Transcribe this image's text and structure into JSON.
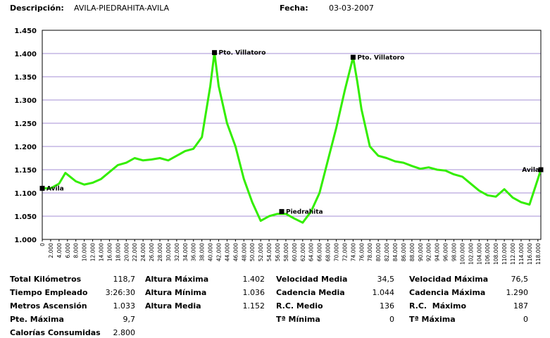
{
  "header": {
    "desc_label": "Descripción:",
    "desc": "AVILA-PIEDRAHITA-AVILA",
    "date_label": "Fecha:",
    "date": "03-03-2007"
  },
  "chart_data": {
    "type": "line",
    "color": "#33ee00",
    "grid": true,
    "xlim": [
      0,
      118700
    ],
    "ylim": [
      1000,
      1450
    ],
    "yticks": [
      {
        "value": 1000,
        "label": "1.000"
      },
      {
        "value": 1050,
        "label": "1.050"
      },
      {
        "value": 1100,
        "label": "1.100"
      },
      {
        "value": 1150,
        "label": "1.150"
      },
      {
        "value": 1200,
        "label": "1.200"
      },
      {
        "value": 1250,
        "label": "1.250"
      },
      {
        "value": 1300,
        "label": "1.300"
      },
      {
        "value": 1350,
        "label": "1.350"
      },
      {
        "value": 1400,
        "label": "1.400"
      },
      {
        "value": 1450,
        "label": "1.450"
      }
    ],
    "xticks": [
      0,
      {
        "value": 2000,
        "label": "2.000"
      },
      {
        "value": 4000,
        "label": "4.000"
      },
      {
        "value": 6000,
        "label": "6.000"
      },
      {
        "value": 8000,
        "label": "8.000"
      },
      {
        "value": 10000,
        "label": "10.000"
      },
      {
        "value": 12000,
        "label": "12.000"
      },
      {
        "value": 14000,
        "label": "14.000"
      },
      {
        "value": 16000,
        "label": "16.000"
      },
      {
        "value": 18000,
        "label": "18.000"
      },
      {
        "value": 20000,
        "label": "20.000"
      },
      {
        "value": 22000,
        "label": "22.000"
      },
      {
        "value": 24000,
        "label": "24.000"
      },
      {
        "value": 26000,
        "label": "26.000"
      },
      {
        "value": 28000,
        "label": "28.000"
      },
      {
        "value": 30000,
        "label": "30.000"
      },
      {
        "value": 32000,
        "label": "32.000"
      },
      {
        "value": 34000,
        "label": "34.000"
      },
      {
        "value": 36000,
        "label": "36.000"
      },
      {
        "value": 38000,
        "label": "38.000"
      },
      {
        "value": 40000,
        "label": "40.000"
      },
      {
        "value": 42000,
        "label": "42.000"
      },
      {
        "value": 44000,
        "label": "44.000"
      },
      {
        "value": 46000,
        "label": "46.000"
      },
      {
        "value": 48000,
        "label": "48.000"
      },
      {
        "value": 50000,
        "label": "50.000"
      },
      {
        "value": 52000,
        "label": "52.000"
      },
      {
        "value": 54000,
        "label": "54.000"
      },
      {
        "value": 56000,
        "label": "56.000"
      },
      {
        "value": 58000,
        "label": "58.000"
      },
      {
        "value": 60000,
        "label": "60.000"
      },
      {
        "value": 62000,
        "label": "62.000"
      },
      {
        "value": 64000,
        "label": "64.000"
      },
      {
        "value": 66000,
        "label": "66.000"
      },
      {
        "value": 68000,
        "label": "68.000"
      },
      {
        "value": 70000,
        "label": "70.000"
      },
      {
        "value": 72000,
        "label": "72.000"
      },
      {
        "value": 74000,
        "label": "74.000"
      },
      {
        "value": 76000,
        "label": "76.000"
      },
      {
        "value": 78000,
        "label": "78.000"
      },
      {
        "value": 80000,
        "label": "80.000"
      },
      {
        "value": 82000,
        "label": "82.000"
      },
      {
        "value": 84000,
        "label": "84.000"
      },
      {
        "value": 86000,
        "label": "86.000"
      },
      {
        "value": 88000,
        "label": "88.000"
      },
      {
        "value": 90000,
        "label": "90.000"
      },
      {
        "value": 92000,
        "label": "92.000"
      },
      {
        "value": 94000,
        "label": "94.000"
      },
      {
        "value": 96000,
        "label": "96.000"
      },
      {
        "value": 98000,
        "label": "98.000"
      },
      {
        "value": 100000,
        "label": "100.000"
      },
      {
        "value": 102000,
        "label": "102.000"
      },
      {
        "value": 104000,
        "label": "104.000"
      },
      {
        "value": 106000,
        "label": "106.000"
      },
      {
        "value": 108000,
        "label": "108.000"
      },
      {
        "value": 110000,
        "label": "110.000"
      },
      {
        "value": 112000,
        "label": "112.000"
      },
      {
        "value": 114000,
        "label": "114.000"
      },
      {
        "value": 116000,
        "label": "116.000"
      },
      {
        "value": 118000,
        "label": "118.000"
      }
    ],
    "x": [
      0,
      2000,
      4000,
      5500,
      8000,
      10000,
      12000,
      14000,
      16000,
      18000,
      20000,
      22000,
      24000,
      26000,
      28000,
      30000,
      32000,
      34000,
      36000,
      38000,
      40000,
      41000,
      42000,
      44000,
      46000,
      48000,
      50000,
      52000,
      54000,
      56000,
      58000,
      60000,
      62000,
      64000,
      66000,
      68000,
      70000,
      72000,
      74000,
      75000,
      76000,
      78000,
      80000,
      82000,
      84000,
      86000,
      88000,
      90000,
      92000,
      94000,
      96000,
      98000,
      100000,
      102000,
      104000,
      106000,
      108000,
      110000,
      112000,
      114000,
      116000,
      118000,
      118700
    ],
    "values": [
      1110,
      1110,
      1120,
      1143,
      1125,
      1118,
      1122,
      1130,
      1145,
      1160,
      1165,
      1175,
      1170,
      1172,
      1175,
      1170,
      1180,
      1190,
      1195,
      1220,
      1330,
      1402,
      1330,
      1250,
      1200,
      1130,
      1080,
      1040,
      1050,
      1055,
      1055,
      1045,
      1036,
      1060,
      1100,
      1170,
      1240,
      1320,
      1392,
      1340,
      1280,
      1200,
      1180,
      1175,
      1168,
      1165,
      1158,
      1152,
      1155,
      1150,
      1148,
      1140,
      1135,
      1120,
      1105,
      1095,
      1092,
      1108,
      1090,
      1080,
      1075,
      1130,
      1150
    ],
    "annotations": [
      {
        "x": 0,
        "y": 1110,
        "label": "Avila"
      },
      {
        "x": 41000,
        "y": 1402,
        "label": "Pto. Villatoro"
      },
      {
        "x": 57000,
        "y": 1060,
        "label": "Piedrahita"
      },
      {
        "x": 74000,
        "y": 1392,
        "label": "Pto. Villatoro"
      },
      {
        "x": 118700,
        "y": 1150,
        "label": "Avila"
      }
    ]
  },
  "stats": [
    [
      {
        "label": "Total Kilómetros",
        "value": "118,7"
      },
      {
        "label": "Tiempo Empleado",
        "value": "3:26:30"
      },
      {
        "label": "Metros Ascensión",
        "value": "1.033"
      },
      {
        "label": "Pte. Máxima",
        "value": "9,7"
      },
      {
        "label": "Calorías Consumidas",
        "value": "2.800"
      }
    ],
    [
      {
        "label": "Altura Máxima",
        "value": "1.402"
      },
      {
        "label": "Altura Mínima",
        "value": "1.036"
      },
      {
        "label": "Altura Media",
        "value": "1.152"
      }
    ],
    [
      {
        "label": "Velocidad Media",
        "value": "34,5"
      },
      {
        "label": "Cadencia Media",
        "value": "1.044"
      },
      {
        "label": "R.C. Medio",
        "value": "136"
      },
      {
        "label": "Tª Mínima",
        "value": "0"
      }
    ],
    [
      {
        "label": "Velocidad Máxima",
        "value": "76,5"
      },
      {
        "label": "Cadencia Máxima",
        "value": "1.290"
      },
      {
        "label": "R.C.  Máximo",
        "value": "187"
      },
      {
        "label": "Tª Máxima",
        "value": "0"
      }
    ]
  ]
}
